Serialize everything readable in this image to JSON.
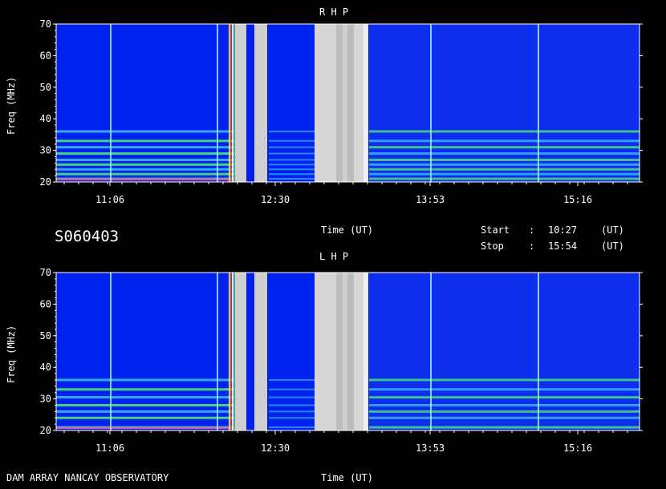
{
  "chart_data": [
    {
      "type": "heatmap",
      "title": "R H P",
      "ylabel": "Freq (MHz)",
      "xlabel": "",
      "ylim": [
        20,
        70
      ],
      "yticks": [
        "20",
        "30",
        "40",
        "50",
        "60",
        "70"
      ],
      "xticks": [
        "11:06",
        "12:30",
        "13:53",
        "15:16"
      ],
      "grid": false,
      "bright_lines_mhz": [
        21,
        22.5,
        24,
        25.5,
        27,
        29,
        31,
        33,
        36
      ]
    },
    {
      "type": "heatmap",
      "title": "L H P",
      "ylabel": "Freq (MHz)",
      "xlabel": "Time (UT)",
      "ylim": [
        20,
        70
      ],
      "yticks": [
        "20",
        "30",
        "40",
        "50",
        "60",
        "70"
      ],
      "xticks": [
        "11:06",
        "12:30",
        "13:53",
        "15:16"
      ],
      "grid": false,
      "bright_lines_mhz": [
        21,
        24,
        26,
        28,
        30.5,
        33,
        36
      ]
    }
  ],
  "middle": {
    "date_code": "S060403",
    "time_label": "Time (UT)",
    "start_label": "Start",
    "start_value": "10:27",
    "stop_label": "Stop",
    "stop_value": "15:54",
    "sep": ":",
    "unit": "(UT)"
  },
  "footer": {
    "observatory": "DAM ARRAY  NANCAY OBSERVATORY"
  },
  "colors": {
    "background": "#0022ee",
    "vertical_line": "#9fe8ff",
    "band_green": "#55ff66",
    "band_cyan": "#44ccff",
    "gap_gray": "#d8d8d8"
  }
}
